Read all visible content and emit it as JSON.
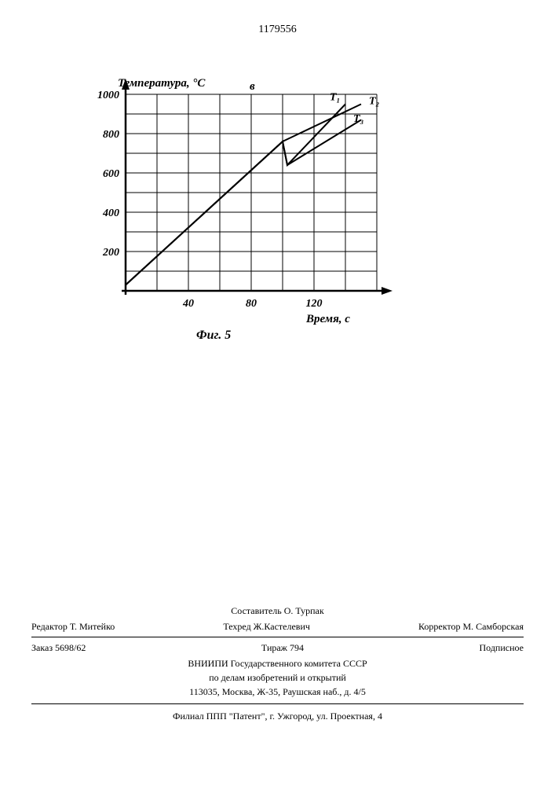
{
  "document_number": "1179556",
  "top_marker": "в",
  "chart": {
    "type": "line",
    "y_label": "Температура, °С",
    "x_label": "Время, с",
    "caption": "Фиг. 5",
    "x_range": [
      0,
      160
    ],
    "y_range": [
      0,
      1000
    ],
    "x_ticks": [
      40,
      80,
      120
    ],
    "y_ticks": [
      200,
      400,
      600,
      800,
      1000
    ],
    "grid_x_step": 20,
    "grid_y_step": 100,
    "background_color": "#ffffff",
    "grid_color": "#000000",
    "line_color": "#000000",
    "line_width": 2,
    "tick_fontsize": 14,
    "label_fontsize": 15,
    "series": {
      "T1": {
        "label": "Т₁",
        "points": [
          [
            0,
            30
          ],
          [
            100,
            760
          ],
          [
            103,
            640
          ],
          [
            140,
            950
          ]
        ]
      },
      "T2": {
        "label": "Т₂",
        "points": [
          [
            0,
            30
          ],
          [
            100,
            760
          ],
          [
            150,
            950
          ]
        ]
      },
      "T3": {
        "label": "Т₃",
        "points": [
          [
            0,
            30
          ],
          [
            100,
            760
          ],
          [
            103,
            640
          ],
          [
            150,
            870
          ]
        ]
      }
    },
    "series_label_positions": {
      "T1": [
        130,
        970
      ],
      "T2": [
        155,
        950
      ],
      "T3": [
        145,
        860
      ]
    }
  },
  "footer": {
    "compiler": "Составитель О. Турпак",
    "editor": "Редактор Т. Митейко",
    "techred": "Техред Ж.Кастелевич",
    "corrector": "Корректор М. Самборская",
    "order": "Заказ 5698/62",
    "circulation": "Тираж 794",
    "signed": "Подписное",
    "org1": "ВНИИПИ Государственного комитета СССР",
    "org2": "по делам изобретений и открытий",
    "address": "113035, Москва, Ж-35, Раушская наб., д. 4/5",
    "branch": "Филиал ППП \"Патент\", г. Ужгород, ул. Проектная, 4"
  }
}
